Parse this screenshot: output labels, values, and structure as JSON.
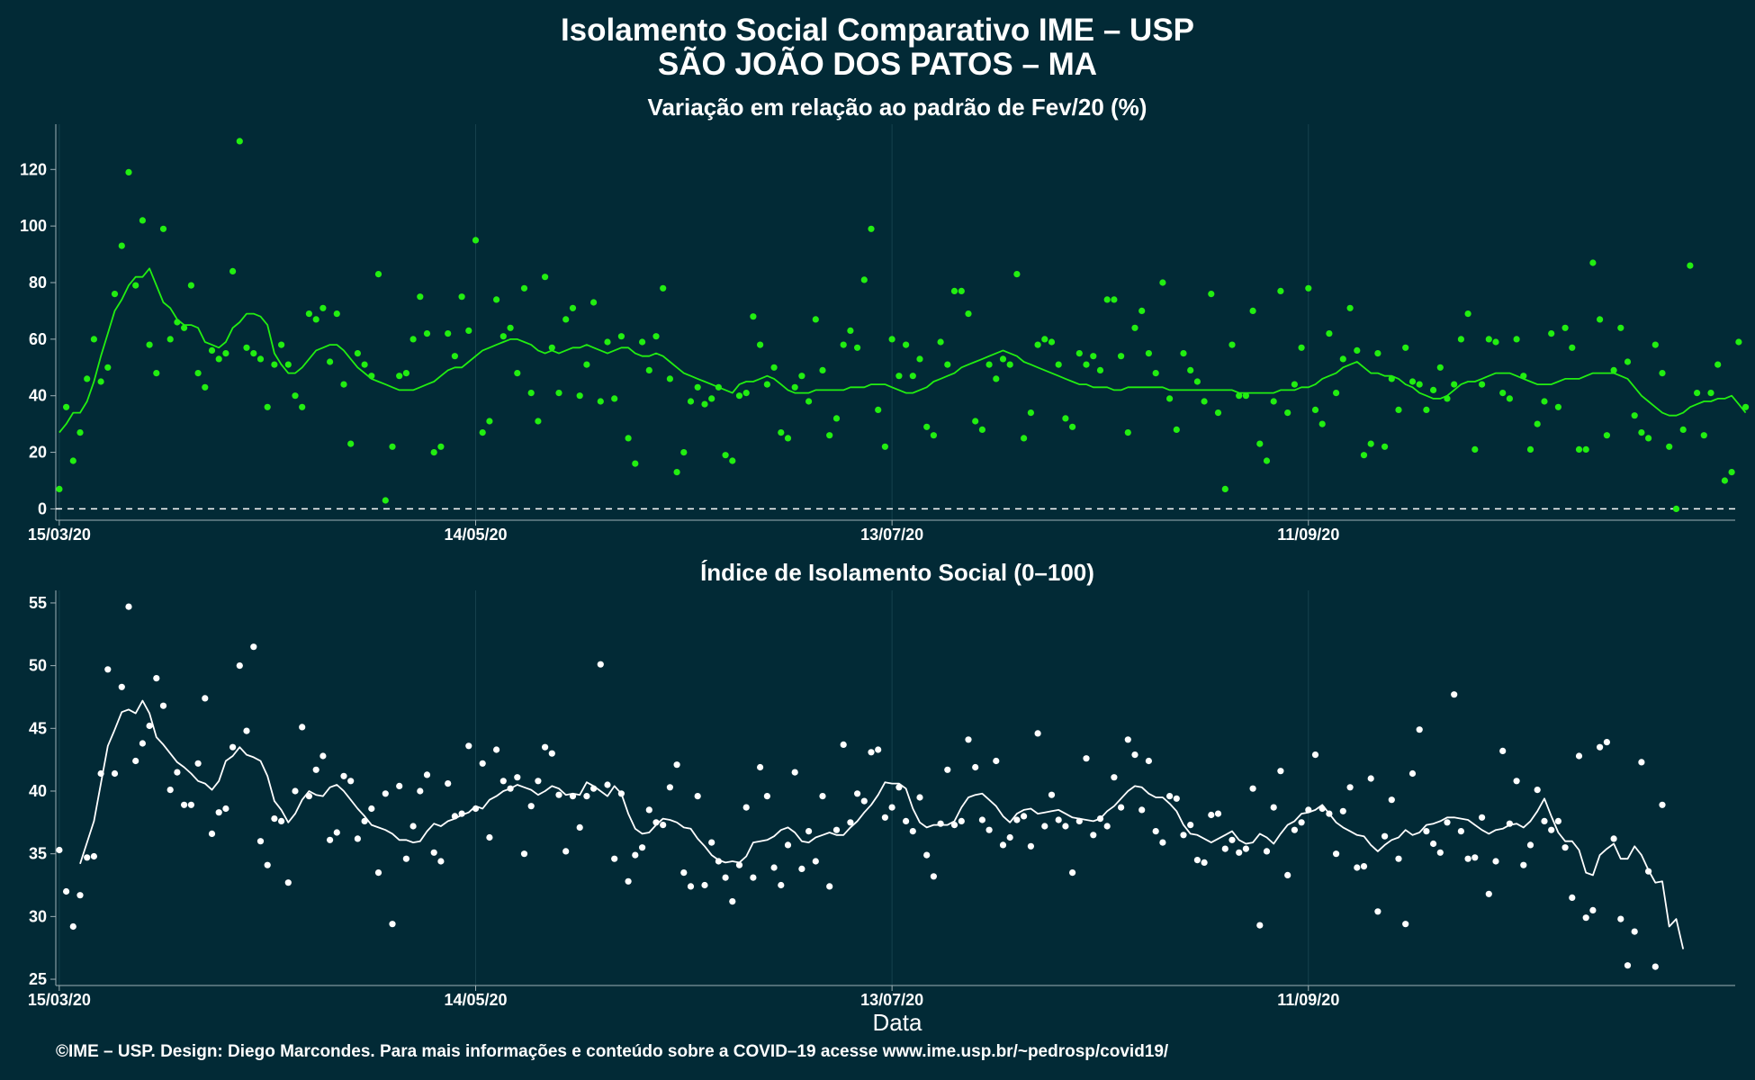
{
  "title_line1": "Isolamento Social Comparativo IME – USP",
  "title_line2": "SÃO JOÃO DOS PATOS – MA",
  "footer": "©IME – USP. Design: Diego Marcondes. Para mais informações e conteúdo sobre a COVID–19 acesse www.ime.usp.br/~pedrosp/covid19/",
  "colors": {
    "background": "#022a36",
    "series_top": "#22ee11",
    "series_bottom": "#ffffff",
    "grid": "#16404c"
  },
  "chart_data": [
    {
      "type": "scatter",
      "title": "Variação em relação ao padrão de Fev/20 (%)",
      "xlabel": "",
      "ylabel": "",
      "x_ticks": [
        "15/03/20",
        "14/05/20",
        "13/07/20",
        "11/09/20"
      ],
      "y_ticks": [
        0,
        20,
        40,
        60,
        80,
        100,
        120
      ],
      "ylim": [
        -4,
        136
      ],
      "xlim_days": [
        -0.5,
        241.5
      ],
      "reference_line": 0,
      "series": [
        {
          "kind": "points",
          "values": [
            7,
            36,
            17,
            27,
            46,
            60,
            45,
            50,
            76,
            93,
            119,
            79,
            102,
            58,
            48,
            99,
            60,
            66,
            64,
            79,
            48,
            43,
            56,
            53,
            55,
            84,
            130,
            57,
            55,
            53,
            36,
            51,
            58,
            51,
            40,
            36,
            69,
            67,
            71,
            52,
            69,
            44,
            23,
            55,
            51,
            47,
            83,
            3,
            22,
            47,
            48,
            60,
            75,
            62,
            20,
            22,
            62,
            54,
            75,
            63,
            95,
            27,
            31,
            74,
            61,
            64,
            48,
            78,
            41,
            31,
            82,
            57,
            41,
            67,
            71,
            40,
            51,
            73,
            38,
            59,
            39,
            61,
            25,
            16,
            59,
            49,
            61,
            78,
            46,
            13,
            20,
            38,
            43,
            37,
            39,
            43,
            19,
            17,
            40,
            41,
            68,
            58,
            44,
            50,
            27,
            25,
            43,
            47,
            38,
            67,
            49,
            26,
            32,
            58,
            63,
            57,
            81,
            99,
            35,
            22,
            60,
            47,
            58,
            47,
            53,
            29,
            26,
            59,
            51,
            77,
            77,
            69,
            31,
            28,
            51,
            46,
            53,
            51,
            83,
            25,
            34,
            58,
            60,
            59,
            51,
            32,
            29,
            55,
            51,
            54,
            49,
            74,
            74,
            54,
            27,
            64,
            70,
            55,
            48,
            80,
            39,
            28,
            55,
            49,
            45,
            38,
            76,
            34,
            7,
            58,
            40,
            40,
            70,
            23,
            17,
            38,
            77,
            34,
            44,
            57,
            78,
            35,
            30,
            62,
            41,
            53,
            71,
            56,
            19,
            23,
            55,
            22,
            46,
            35,
            57,
            45,
            44,
            35,
            42,
            50,
            39,
            44,
            60,
            69,
            21,
            44,
            60,
            59,
            41,
            39,
            60,
            47,
            21,
            30,
            38,
            62,
            36,
            64,
            57,
            21,
            21,
            87,
            67,
            26,
            49,
            64,
            52,
            33,
            27,
            25,
            58,
            48,
            22,
            0,
            28,
            86,
            41,
            26,
            41,
            51,
            10,
            13,
            59,
            36
          ]
        },
        {
          "kind": "moving_average",
          "start_day": 0,
          "values": [
            27,
            30,
            34,
            34,
            38,
            45,
            54,
            62,
            70,
            74,
            79,
            82,
            82,
            85,
            79,
            73,
            71,
            67,
            65,
            65,
            64,
            59,
            58,
            57,
            59,
            64,
            66,
            69,
            69,
            68,
            65,
            55,
            51,
            48,
            48,
            50,
            53,
            56,
            57,
            58,
            58,
            56,
            53,
            50,
            48,
            46,
            45,
            44,
            43,
            42,
            42,
            42,
            43,
            44,
            45,
            47,
            49,
            50,
            50,
            52,
            54,
            56,
            57,
            58,
            59,
            60,
            60,
            59,
            58,
            56,
            55,
            56,
            55,
            56,
            57,
            57,
            58,
            57,
            56,
            55,
            56,
            57,
            57,
            55,
            54,
            54,
            55,
            54,
            52,
            50,
            48,
            47,
            46,
            45,
            44,
            43,
            42,
            41,
            44,
            45,
            45,
            46,
            47,
            46,
            44,
            42,
            41,
            41,
            41,
            42,
            42,
            42,
            42,
            42,
            43,
            43,
            43,
            44,
            44,
            44,
            43,
            42,
            41,
            41,
            42,
            43,
            45,
            46,
            47,
            48,
            50,
            51,
            52,
            53,
            54,
            55,
            56,
            55,
            54,
            52,
            51,
            50,
            49,
            48,
            47,
            46,
            45,
            44,
            44,
            43,
            43,
            43,
            42,
            42,
            43,
            43,
            43,
            43,
            43,
            43,
            42,
            42,
            42,
            42,
            42,
            42,
            42,
            42,
            42,
            42,
            41,
            41,
            41,
            41,
            41,
            41,
            42,
            42,
            42,
            43,
            43,
            44,
            46,
            47,
            48,
            50,
            51,
            52,
            50,
            48,
            48,
            47,
            47,
            46,
            44,
            43,
            41,
            40,
            39,
            39,
            40,
            42,
            44,
            45,
            45,
            46,
            47,
            48,
            48,
            48,
            47,
            46,
            45,
            44,
            44,
            44,
            45,
            46,
            46,
            46,
            47,
            48,
            48,
            48,
            48,
            47,
            46,
            43,
            40,
            38,
            36,
            34,
            33,
            33,
            34,
            36,
            37,
            38,
            38,
            39,
            39,
            40,
            37,
            34
          ]
        }
      ]
    },
    {
      "type": "scatter",
      "title": "Índice de Isolamento Social (0–100)",
      "xlabel": "Data",
      "ylabel": "",
      "x_ticks": [
        "15/03/20",
        "14/05/20",
        "13/07/20",
        "11/09/20"
      ],
      "y_ticks": [
        25,
        30,
        35,
        40,
        45,
        50,
        55
      ],
      "ylim": [
        24.5,
        56
      ],
      "xlim_days": [
        -0.5,
        241.5
      ],
      "series": [
        {
          "kind": "points",
          "values": [
            35.3,
            32,
            29.2,
            31.7,
            34.7,
            34.8,
            41.4,
            49.7,
            41.4,
            48.3,
            54.7,
            42.4,
            43.8,
            45.2,
            49,
            46.8,
            40.1,
            41.5,
            38.9,
            38.9,
            42.2,
            47.4,
            36.6,
            38.3,
            38.6,
            43.5,
            50,
            44.8,
            51.5,
            36,
            34.1,
            37.8,
            37.6,
            32.7,
            40,
            45.1,
            39.6,
            41.7,
            42.8,
            36.1,
            36.7,
            41.2,
            40.8,
            36.2,
            37.6,
            38.6,
            33.5,
            39.8,
            29.4,
            40.4,
            34.6,
            37.2,
            40,
            41.3,
            35.1,
            34.4,
            40.6,
            38,
            38.2,
            43.6,
            38.6,
            42.2,
            36.3,
            43.3,
            40.8,
            40.2,
            41.1,
            35,
            38.8,
            40.8,
            43.5,
            43,
            39.7,
            35.2,
            39.6,
            37.1,
            39.6,
            40.2,
            50.1,
            40.5,
            34.6,
            39.8,
            32.8,
            34.9,
            35.5,
            38.5,
            37.5,
            37.3,
            40.3,
            42.1,
            33.5,
            32.4,
            39.6,
            32.5,
            35.9,
            34.4,
            33.1,
            31.2,
            34.1,
            38.7,
            33.1,
            41.9,
            39.6,
            33.9,
            32.5,
            35.7,
            41.5,
            33.8,
            36.8,
            34.4,
            39.6,
            32.4,
            36.9,
            43.7,
            37.5,
            39.8,
            39.2,
            43.1,
            43.3,
            37.9,
            38.7,
            40.3,
            37.6,
            36.8,
            39.5,
            34.9,
            33.2,
            37.4,
            41.7,
            37.3,
            37.6,
            44.1,
            41.9,
            37.7,
            36.9,
            42.4,
            35.7,
            36.3,
            37.7,
            38,
            35.6,
            44.6,
            37.2,
            39.7,
            37.7,
            37.2,
            33.5,
            37.6,
            42.6,
            36.5,
            37.8,
            37.2,
            41.1,
            38.7,
            44.1,
            42.9,
            38.5,
            42.4,
            36.8,
            35.9,
            39.6,
            39.4,
            36.5,
            37.3,
            34.5,
            34.3,
            38.1,
            38.2,
            35.4,
            36.1,
            35.1,
            35.4,
            40.2,
            29.3,
            35.2,
            38.7,
            41.6,
            33.3,
            36.9,
            37.5,
            38.5,
            42.9,
            38.6,
            38.2,
            35,
            38.4,
            40.3,
            33.9,
            34,
            41,
            30.4,
            36.4,
            39.3,
            34.6,
            29.4,
            41.4,
            44.9,
            36.8,
            35.8,
            35.1,
            37.5,
            47.7,
            36.8,
            34.6,
            34.7,
            37.9,
            31.8,
            34.4,
            43.2,
            37.4,
            40.8,
            34.1,
            35.7,
            40.1,
            37.6,
            36.9,
            37.6,
            35.5,
            31.5,
            42.8,
            29.9,
            30.5,
            43.5,
            43.9,
            36.2,
            29.8,
            26.1,
            28.8,
            42.3,
            33.6,
            26,
            38.9
          ]
        },
        {
          "kind": "moving_average",
          "start_day": 3,
          "values": [
            34.2,
            35.9,
            37.6,
            40.6,
            43.6,
            44.9,
            46.3,
            46.5,
            46.2,
            47.2,
            46.2,
            44.3,
            43.7,
            43,
            42.3,
            41.9,
            41.4,
            40.8,
            40.6,
            40.1,
            40.8,
            42.4,
            42.8,
            43.5,
            42.9,
            42.7,
            42.4,
            41.2,
            39.2,
            38.5,
            37.5,
            38.2,
            39.3,
            40,
            39.7,
            39.6,
            40.3,
            40.5,
            40,
            39.3,
            38.6,
            38,
            37.3,
            37.1,
            36.9,
            36.6,
            36.1,
            36.1,
            35.9,
            36,
            36.8,
            37.4,
            37.2,
            37.6,
            37.8,
            38.1,
            38.3,
            38.8,
            38.6,
            39.3,
            39.6,
            40,
            40.2,
            40.5,
            40.3,
            40.1,
            39.7,
            40,
            40.4,
            40.2,
            39.7,
            39.8,
            39.7,
            40.7,
            40.4,
            40,
            39.6,
            40.4,
            39.8,
            38.2,
            37,
            36.6,
            36.7,
            37.3,
            37.8,
            37.7,
            37.5,
            37.1,
            37,
            36.2,
            35.6,
            34.9,
            34.5,
            34.3,
            34.4,
            34.3,
            34.8,
            35.9,
            36,
            36.1,
            36.4,
            36.9,
            37.1,
            36.7,
            36,
            35.9,
            36.3,
            36.5,
            36.7,
            36.5,
            36.5,
            37.1,
            37.6,
            38.3,
            38.9,
            39.7,
            40.7,
            40.6,
            40.6,
            40.2,
            38.6,
            37.5,
            37.1,
            37.3,
            37.3,
            37.3,
            37.6,
            38.7,
            39.5,
            39.7,
            39.8,
            39.3,
            38.8,
            38,
            37.5,
            38.2,
            38.5,
            38.6,
            38.2,
            38.3,
            38.4,
            38.5,
            38.2,
            37.9,
            37.8,
            37.7,
            37.6,
            37.8,
            38.4,
            38.8,
            39.4,
            40,
            40.4,
            40.3,
            39.8,
            39.5,
            39.5,
            39,
            38.4,
            37.3,
            36.6,
            36.5,
            36.2,
            35.9,
            36.2,
            36.5,
            36.8,
            36.1,
            35.8,
            35.9,
            36.6,
            36.3,
            35.8,
            36.6,
            37.3,
            37.6,
            38.2,
            38.3,
            38.5,
            38.9,
            38.2,
            37.5,
            37.1,
            36.8,
            36.5,
            36.4,
            35.7,
            35.2,
            35.7,
            36.1,
            36.3,
            36.9,
            36.5,
            36.7,
            37.3,
            37.4,
            37.6,
            37.9,
            37.9,
            37.8,
            37.7,
            37.3,
            36.9,
            36.6,
            36.9,
            37,
            37.3,
            37.4,
            37.1,
            37.6,
            38.4,
            39.4,
            38,
            36.7,
            36,
            36,
            35.3,
            33.5,
            33.3,
            34.9,
            35.4,
            35.8,
            34.6,
            34.6,
            35.6,
            34.9,
            33.7,
            32.7,
            32.8,
            29.2,
            29.8,
            27.4
          ]
        }
      ]
    }
  ]
}
